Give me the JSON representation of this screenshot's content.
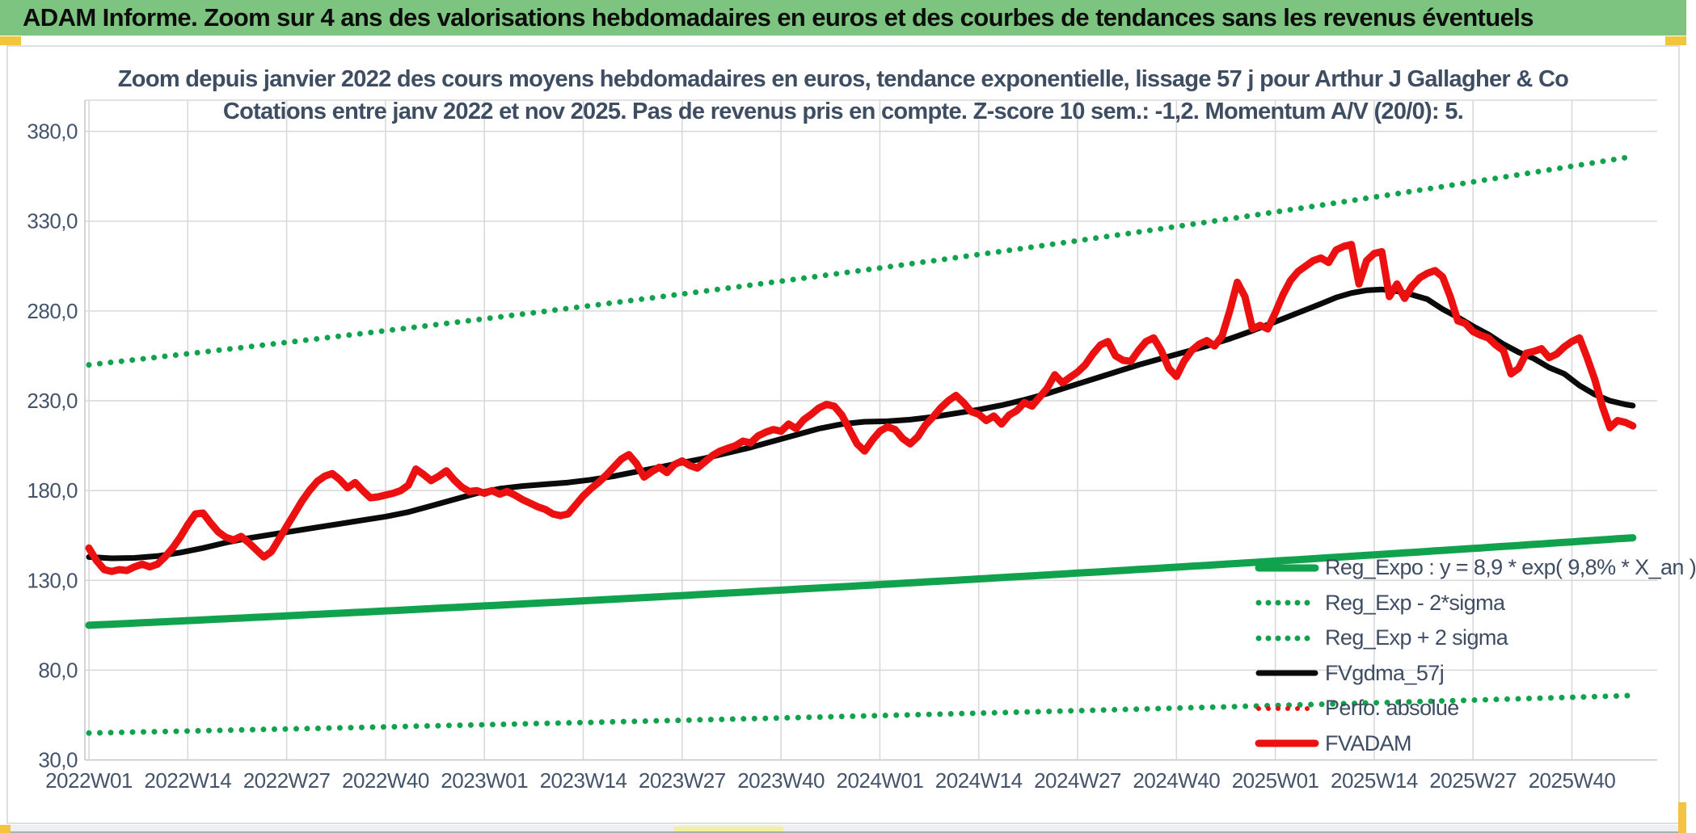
{
  "header": {
    "title": "ADAM Informe. Zoom sur 4 ans des valorisations hebdomadaires en euros et des courbes de tendances sans les revenus éventuels",
    "bg_color": "#7cc47f"
  },
  "chart": {
    "title_line1": "Zoom depuis janvier 2022 des cours moyens hebdomadaires en euros, tendance exponentielle, lissage 57 j pour Arthur J Gallagher & Co",
    "title_line2": "Cotations entre janv 2022 et nov 2025. Pas de revenus pris en compte. Z-score 10 sem.: -1,2. Momentum A/V (20/0): 5.",
    "title_color": "#3f4d63",
    "grid_color": "#d9d9d9",
    "axis_text_color": "#44546a"
  },
  "legend": [
    {
      "label": "Reg_Expo : y = 8,9 * exp( 9,8% *  X_an )",
      "style": "solid",
      "color": "#10A24C",
      "weight": 9
    },
    {
      "label": "Reg_Exp - 2*sigma",
      "style": "dotted",
      "color": "#10A24C",
      "weight": 7
    },
    {
      "label": "Reg_Exp + 2 sigma",
      "style": "dotted",
      "color": "#10A24C",
      "weight": 7
    },
    {
      "label": "FVgdma_57j",
      "style": "solid",
      "color": "#0a0a0a",
      "weight": 7
    },
    {
      "label": "Perfo. absolue",
      "style": "dotted",
      "color": "#ED1010",
      "weight": 6
    },
    {
      "label": "FVADAM",
      "style": "solid",
      "color": "#ED1010",
      "weight": 9
    }
  ],
  "chart_data": {
    "type": "line",
    "title": "Zoom depuis janvier 2022 des cours moyens hebdomadaires en euros, tendance exponentielle, lissage 57 j pour Arthur J Gallagher & Co",
    "subtitle": "Cotations entre janv 2022 et nov 2025. Pas de revenus pris en compte. Z-score 10 sem.: -1,2. Momentum A/V (20/0): 5.",
    "x_unit": "ISO week",
    "weeks_total": 204,
    "x_tick_labels": [
      "2022W01",
      "2022W14",
      "2022W27",
      "2022W40",
      "2023W01",
      "2023W14",
      "2023W27",
      "2023W40",
      "2024W01",
      "2024W14",
      "2024W27",
      "2024W40",
      "2025W01",
      "2025W14",
      "2025W27",
      "2025W40"
    ],
    "x_tick_weeks": [
      0,
      13,
      26,
      39,
      52,
      65,
      78,
      91,
      104,
      117,
      130,
      143,
      156,
      169,
      182,
      195
    ],
    "y_ticks": [
      30,
      80,
      130,
      180,
      230,
      280,
      330,
      380
    ],
    "y_tick_labels": [
      "30,0",
      "80,0",
      "130,0",
      "180,0",
      "230,0",
      "280,0",
      "330,0",
      "380,0"
    ],
    "ylim": [
      30,
      397
    ],
    "grid": true,
    "legend_position": "inside-bottom-right",
    "series": [
      {
        "name": "Reg_Expo",
        "equation": "y = 8,9 * exp( 9,8% *  X_an )",
        "style": "solid",
        "color": "#10A24C",
        "width": 9,
        "model": {
          "type": "exponential",
          "value_at_2022W01": 105,
          "annual_rate": 0.098,
          "weeks_per_year": 52.18
        }
      },
      {
        "name": "Reg_Exp - 2*sigma",
        "style": "dotted",
        "color": "#10A24C",
        "width": 7,
        "model": {
          "type": "exponential",
          "value_at_2022W01": 45,
          "annual_rate": 0.098,
          "weeks_per_year": 52.18
        }
      },
      {
        "name": "Reg_Exp + 2 sigma",
        "style": "dotted",
        "color": "#10A24C",
        "width": 7,
        "model": {
          "type": "exponential",
          "value_at_2022W01": 250,
          "annual_rate": 0.098,
          "weeks_per_year": 52.18
        }
      },
      {
        "name": "FVgdma_57j",
        "style": "solid",
        "color": "#0a0a0a",
        "width": 7,
        "anchors": [
          [
            0,
            143
          ],
          [
            3,
            142.3
          ],
          [
            6,
            142.5
          ],
          [
            9,
            143.5
          ],
          [
            12,
            145.5
          ],
          [
            15,
            148
          ],
          [
            18,
            151
          ],
          [
            21,
            153.5
          ],
          [
            24,
            155.5
          ],
          [
            27,
            157.5
          ],
          [
            30,
            159.5
          ],
          [
            33,
            161.5
          ],
          [
            36,
            163.5
          ],
          [
            39,
            165.5
          ],
          [
            42,
            168
          ],
          [
            45,
            171.5
          ],
          [
            48,
            175
          ],
          [
            51,
            178.5
          ],
          [
            54,
            181
          ],
          [
            57,
            182.5
          ],
          [
            60,
            183.5
          ],
          [
            63,
            184.5
          ],
          [
            66,
            186
          ],
          [
            69,
            188
          ],
          [
            72,
            190.5
          ],
          [
            75,
            193
          ],
          [
            78,
            195.5
          ],
          [
            81,
            198
          ],
          [
            84,
            201
          ],
          [
            87,
            204
          ],
          [
            90,
            207.5
          ],
          [
            93,
            211
          ],
          [
            96,
            214.5
          ],
          [
            99,
            217
          ],
          [
            102,
            218.3
          ],
          [
            105,
            218.6
          ],
          [
            108,
            219.5
          ],
          [
            111,
            221
          ],
          [
            114,
            223
          ],
          [
            117,
            225
          ],
          [
            120,
            227.5
          ],
          [
            123,
            230.5
          ],
          [
            126,
            234
          ],
          [
            129,
            238
          ],
          [
            132,
            242
          ],
          [
            135,
            246
          ],
          [
            138,
            250
          ],
          [
            141,
            253.5
          ],
          [
            144,
            257
          ],
          [
            147,
            260.5
          ],
          [
            150,
            264.5
          ],
          [
            153,
            269
          ],
          [
            156,
            274
          ],
          [
            159,
            279
          ],
          [
            162,
            284
          ],
          [
            164,
            287.5
          ],
          [
            166,
            290
          ],
          [
            168,
            291.5
          ],
          [
            170,
            292
          ],
          [
            172,
            291
          ],
          [
            174,
            289
          ],
          [
            176,
            286.5
          ],
          [
            178,
            281
          ],
          [
            180,
            276.5
          ],
          [
            182,
            271.5
          ],
          [
            184,
            267
          ],
          [
            186,
            261.5
          ],
          [
            188,
            257
          ],
          [
            190,
            253.5
          ],
          [
            192,
            248.5
          ],
          [
            194,
            245
          ],
          [
            196,
            238.5
          ],
          [
            198,
            233.5
          ],
          [
            200,
            230
          ],
          [
            202,
            228
          ],
          [
            203,
            227.3
          ]
        ]
      },
      {
        "name": "Perfo. absolue",
        "style": "dotted",
        "color": "#ED1010",
        "width": 6,
        "values_same_as": "FVADAM",
        "hidden_behind": "FVADAM"
      },
      {
        "name": "FVADAM",
        "style": "solid",
        "color": "#ED1010",
        "width": 9,
        "weekly_values": [
          148,
          141,
          136,
          135,
          136,
          135.5,
          137.5,
          139,
          137.5,
          139,
          143,
          148,
          154,
          161,
          167,
          167.5,
          162,
          157,
          154,
          152.5,
          154.5,
          151,
          147,
          143,
          146,
          153,
          160,
          167,
          174,
          180,
          185,
          188,
          189.5,
          186,
          181.5,
          184.5,
          180,
          176,
          176.5,
          177.5,
          178.5,
          180,
          183,
          192,
          189,
          185.5,
          188,
          191,
          186,
          182,
          179.5,
          180,
          178.5,
          180,
          178,
          179.5,
          177.5,
          175,
          173,
          171,
          169.5,
          167,
          166,
          167,
          172,
          177,
          181,
          184.5,
          188.5,
          193,
          197.5,
          200,
          195,
          187.5,
          190.5,
          193,
          190,
          194.5,
          196.5,
          194,
          192.5,
          196,
          199.5,
          202,
          203.5,
          205,
          207.5,
          206.5,
          210.5,
          212.5,
          214,
          213,
          217,
          214.5,
          219.5,
          222.5,
          226,
          228,
          227,
          222,
          214,
          206,
          202,
          208,
          213,
          215.5,
          214,
          209,
          206,
          210,
          216.5,
          221,
          226,
          230,
          233,
          229,
          224,
          222.5,
          219,
          221.5,
          217,
          222,
          224.5,
          229,
          227,
          232,
          237,
          244.5,
          240,
          243,
          246,
          250,
          256,
          261,
          263,
          255,
          252.5,
          252,
          258,
          263,
          265,
          258,
          248,
          243.5,
          252,
          258,
          261.5,
          263.5,
          260.5,
          266,
          280,
          296,
          288,
          270,
          272,
          270,
          279,
          289,
          297,
          302,
          305,
          308,
          309.5,
          307,
          314,
          316,
          317,
          295,
          308,
          312,
          313,
          288,
          295,
          287,
          294,
          298.5,
          301,
          302.5,
          299,
          288,
          274.5,
          273,
          268.5,
          266.5,
          265,
          261,
          258,
          245,
          248,
          256.5,
          257.5,
          259,
          254,
          256,
          260,
          263,
          265,
          254,
          242,
          227,
          215,
          219,
          218,
          216
        ]
      }
    ]
  }
}
